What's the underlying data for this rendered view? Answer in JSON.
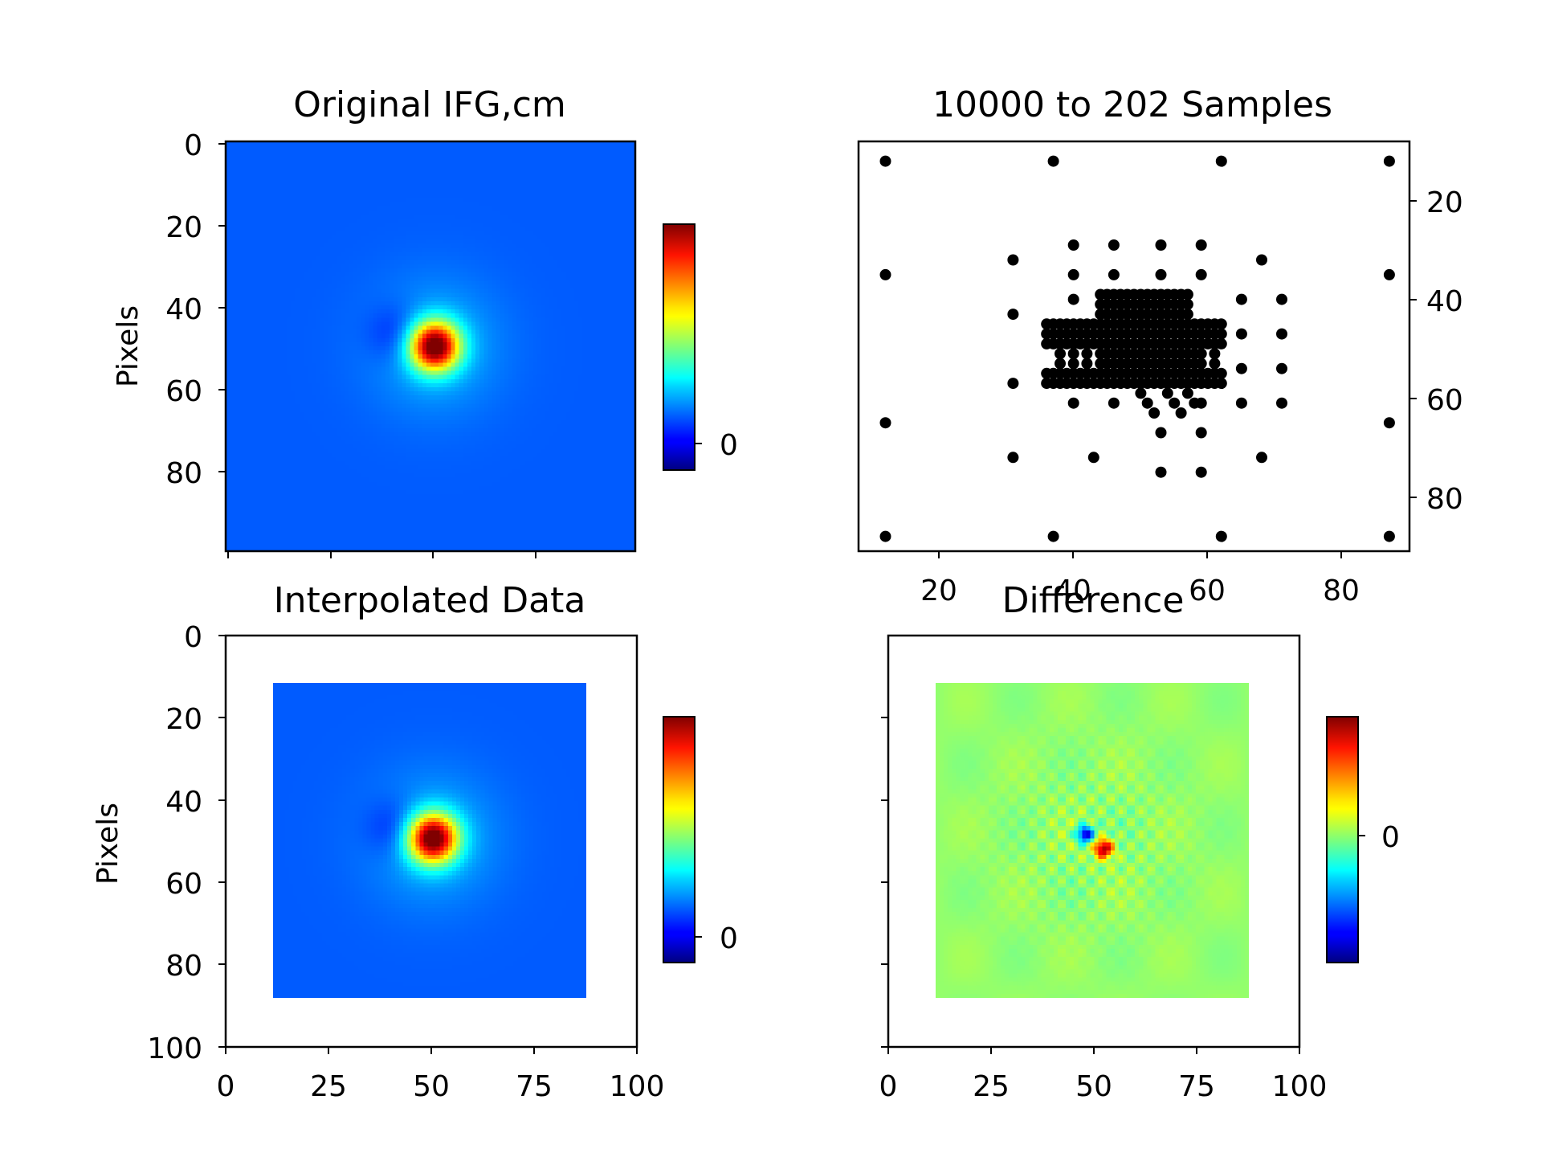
{
  "chart_data": [
    {
      "type": "heatmap",
      "title": "Original IFG,cm",
      "ylabel": "Pixels",
      "xlim": [
        0,
        100
      ],
      "ylim": [
        100,
        0
      ],
      "y_ticks": [
        0,
        20,
        40,
        60,
        80
      ],
      "x_ticks": [
        0,
        25,
        50,
        75,
        100
      ],
      "x_tick_labels_shown": false,
      "colormap": "jet",
      "field": {
        "extent": [
          0,
          100,
          0,
          100
        ],
        "peak": [
          51,
          50
        ],
        "peak_value": 1.0,
        "trough": [
          42,
          47
        ],
        "trough_value": -0.12
      },
      "colorbar": {
        "ticks": [
          0
        ],
        "tick_labels": [
          "0"
        ]
      }
    },
    {
      "type": "scatter",
      "title": "10000 to 202 Samples",
      "xlim": [
        8,
        90
      ],
      "ylim": [
        91,
        8
      ],
      "x_ticks": [
        20,
        40,
        60,
        80
      ],
      "y_ticks": [
        20,
        40,
        60,
        80
      ],
      "y_axis_side": "right",
      "marker_color": "#000000",
      "points": [
        [
          12,
          12
        ],
        [
          37,
          12
        ],
        [
          62,
          12
        ],
        [
          87,
          12
        ],
        [
          12,
          35
        ],
        [
          87,
          35
        ],
        [
          12,
          65
        ],
        [
          87,
          65
        ],
        [
          12,
          88
        ],
        [
          37,
          88
        ],
        [
          62,
          88
        ],
        [
          87,
          88
        ],
        [
          31,
          32
        ],
        [
          31,
          43
        ],
        [
          31,
          57
        ],
        [
          31,
          72
        ],
        [
          68,
          32
        ],
        [
          68,
          72
        ],
        [
          43,
          72
        ],
        [
          53,
          75
        ],
        [
          59,
          75
        ],
        [
          40,
          29
        ],
        [
          46,
          29
        ],
        [
          53,
          29
        ],
        [
          59,
          29
        ],
        [
          40,
          35
        ],
        [
          46,
          35
        ],
        [
          53,
          35
        ],
        [
          59,
          35
        ],
        [
          65,
          40
        ],
        [
          65,
          47
        ],
        [
          65,
          54
        ],
        [
          65,
          61
        ],
        [
          71,
          40
        ],
        [
          71,
          47
        ],
        [
          71,
          54
        ],
        [
          71,
          61
        ],
        [
          53,
          67
        ],
        [
          59,
          67
        ],
        [
          36,
          45
        ],
        [
          37,
          45
        ],
        [
          38,
          45
        ],
        [
          39,
          45
        ],
        [
          40,
          45
        ],
        [
          41,
          45
        ],
        [
          42,
          45
        ],
        [
          43,
          45
        ],
        [
          44,
          45
        ],
        [
          45,
          45
        ],
        [
          46,
          45
        ],
        [
          47,
          45
        ],
        [
          48,
          45
        ],
        [
          49,
          45
        ],
        [
          50,
          45
        ],
        [
          51,
          45
        ],
        [
          52,
          45
        ],
        [
          53,
          45
        ],
        [
          54,
          45
        ],
        [
          55,
          45
        ],
        [
          56,
          45
        ],
        [
          57,
          45
        ],
        [
          58,
          45
        ],
        [
          59,
          45
        ],
        [
          60,
          45
        ],
        [
          61,
          45
        ],
        [
          62,
          45
        ],
        [
          36,
          47
        ],
        [
          37,
          47
        ],
        [
          38,
          47
        ],
        [
          39,
          47
        ],
        [
          40,
          47
        ],
        [
          41,
          47
        ],
        [
          42,
          47
        ],
        [
          43,
          47
        ],
        [
          44,
          47
        ],
        [
          45,
          47
        ],
        [
          46,
          47
        ],
        [
          47,
          47
        ],
        [
          48,
          47
        ],
        [
          49,
          47
        ],
        [
          50,
          47
        ],
        [
          51,
          47
        ],
        [
          52,
          47
        ],
        [
          53,
          47
        ],
        [
          54,
          47
        ],
        [
          55,
          47
        ],
        [
          56,
          47
        ],
        [
          57,
          47
        ],
        [
          58,
          47
        ],
        [
          59,
          47
        ],
        [
          60,
          47
        ],
        [
          61,
          47
        ],
        [
          62,
          47
        ],
        [
          36,
          49
        ],
        [
          37,
          49
        ],
        [
          38,
          49
        ],
        [
          39,
          49
        ],
        [
          40,
          49
        ],
        [
          41,
          49
        ],
        [
          42,
          49
        ],
        [
          43,
          49
        ],
        [
          44,
          49
        ],
        [
          45,
          49
        ],
        [
          46,
          49
        ],
        [
          47,
          49
        ],
        [
          48,
          49
        ],
        [
          49,
          49
        ],
        [
          50,
          49
        ],
        [
          51,
          49
        ],
        [
          52,
          49
        ],
        [
          53,
          49
        ],
        [
          54,
          49
        ],
        [
          55,
          49
        ],
        [
          56,
          49
        ],
        [
          57,
          49
        ],
        [
          58,
          49
        ],
        [
          59,
          49
        ],
        [
          60,
          49
        ],
        [
          61,
          49
        ],
        [
          62,
          49
        ],
        [
          36,
          55
        ],
        [
          37,
          55
        ],
        [
          38,
          55
        ],
        [
          39,
          55
        ],
        [
          40,
          55
        ],
        [
          41,
          55
        ],
        [
          42,
          55
        ],
        [
          43,
          55
        ],
        [
          44,
          55
        ],
        [
          45,
          55
        ],
        [
          46,
          55
        ],
        [
          47,
          55
        ],
        [
          48,
          55
        ],
        [
          49,
          55
        ],
        [
          50,
          55
        ],
        [
          51,
          55
        ],
        [
          52,
          55
        ],
        [
          53,
          55
        ],
        [
          54,
          55
        ],
        [
          55,
          55
        ],
        [
          56,
          55
        ],
        [
          57,
          55
        ],
        [
          58,
          55
        ],
        [
          59,
          55
        ],
        [
          60,
          55
        ],
        [
          61,
          55
        ],
        [
          62,
          55
        ],
        [
          36,
          57
        ],
        [
          37,
          57
        ],
        [
          38,
          57
        ],
        [
          39,
          57
        ],
        [
          40,
          57
        ],
        [
          41,
          57
        ],
        [
          42,
          57
        ],
        [
          43,
          57
        ],
        [
          44,
          57
        ],
        [
          45,
          57
        ],
        [
          46,
          57
        ],
        [
          47,
          57
        ],
        [
          48,
          57
        ],
        [
          49,
          57
        ],
        [
          50,
          57
        ],
        [
          51,
          57
        ],
        [
          52,
          57
        ],
        [
          53,
          57
        ],
        [
          54,
          57
        ],
        [
          55,
          57
        ],
        [
          56,
          57
        ],
        [
          57,
          57
        ],
        [
          58,
          57
        ],
        [
          59,
          57
        ],
        [
          60,
          57
        ],
        [
          61,
          57
        ],
        [
          62,
          57
        ],
        [
          38,
          51
        ],
        [
          40,
          51
        ],
        [
          42,
          51
        ],
        [
          44,
          51
        ],
        [
          45,
          51
        ],
        [
          46,
          51
        ],
        [
          47,
          51
        ],
        [
          48,
          51
        ],
        [
          49,
          51
        ],
        [
          50,
          51
        ],
        [
          51,
          51
        ],
        [
          52,
          51
        ],
        [
          53,
          51
        ],
        [
          54,
          51
        ],
        [
          55,
          51
        ],
        [
          56,
          51
        ],
        [
          57,
          51
        ],
        [
          58,
          51
        ],
        [
          59,
          51
        ],
        [
          61,
          51
        ],
        [
          38,
          53
        ],
        [
          40,
          53
        ],
        [
          42,
          53
        ],
        [
          44,
          53
        ],
        [
          45,
          53
        ],
        [
          46,
          53
        ],
        [
          47,
          53
        ],
        [
          48,
          53
        ],
        [
          49,
          53
        ],
        [
          50,
          53
        ],
        [
          51,
          53
        ],
        [
          52,
          53
        ],
        [
          53,
          53
        ],
        [
          54,
          53
        ],
        [
          55,
          53
        ],
        [
          56,
          53
        ],
        [
          57,
          53
        ],
        [
          58,
          53
        ],
        [
          59,
          53
        ],
        [
          61,
          53
        ],
        [
          44,
          39
        ],
        [
          45,
          39
        ],
        [
          46,
          39
        ],
        [
          47,
          39
        ],
        [
          48,
          39
        ],
        [
          49,
          39
        ],
        [
          50,
          39
        ],
        [
          51,
          39
        ],
        [
          52,
          39
        ],
        [
          53,
          39
        ],
        [
          54,
          39
        ],
        [
          55,
          39
        ],
        [
          56,
          39
        ],
        [
          57,
          39
        ],
        [
          44,
          41
        ],
        [
          45,
          41
        ],
        [
          46,
          41
        ],
        [
          47,
          41
        ],
        [
          48,
          41
        ],
        [
          49,
          41
        ],
        [
          50,
          41
        ],
        [
          51,
          41
        ],
        [
          52,
          41
        ],
        [
          53,
          41
        ],
        [
          54,
          41
        ],
        [
          55,
          41
        ],
        [
          56,
          41
        ],
        [
          57,
          41
        ],
        [
          44,
          43
        ],
        [
          45,
          43
        ],
        [
          46,
          43
        ],
        [
          47,
          43
        ],
        [
          48,
          43
        ],
        [
          49,
          43
        ],
        [
          50,
          43
        ],
        [
          51,
          43
        ],
        [
          52,
          43
        ],
        [
          53,
          43
        ],
        [
          54,
          43
        ],
        [
          55,
          43
        ],
        [
          56,
          43
        ],
        [
          57,
          43
        ],
        [
          40,
          40
        ],
        [
          40,
          61
        ],
        [
          46,
          61
        ],
        [
          50,
          59
        ],
        [
          51,
          61
        ],
        [
          52,
          63
        ],
        [
          54,
          59
        ],
        [
          55,
          61
        ],
        [
          56,
          63
        ],
        [
          57,
          59
        ],
        [
          58,
          61
        ],
        [
          59,
          61
        ]
      ]
    },
    {
      "type": "heatmap",
      "title": "Interpolated Data",
      "ylabel": "Pixels",
      "xlim": [
        0,
        100
      ],
      "ylim": [
        100,
        0
      ],
      "x_ticks": [
        0,
        25,
        50,
        75,
        100
      ],
      "y_ticks": [
        0,
        20,
        40,
        60,
        80,
        100
      ],
      "colormap": "jet",
      "field": {
        "extent": [
          11.5,
          88,
          11.5,
          88.5
        ],
        "peak": [
          50.5,
          49.5
        ],
        "peak_value": 1.0,
        "trough": [
          41.5,
          47
        ],
        "trough_value": -0.12
      },
      "colorbar": {
        "ticks": [
          0
        ],
        "tick_labels": [
          "0"
        ]
      }
    },
    {
      "type": "heatmap",
      "title": "Difference",
      "xlim": [
        0,
        100
      ],
      "ylim": [
        100,
        0
      ],
      "x_ticks": [
        0,
        25,
        50,
        75,
        100
      ],
      "y_ticks": [
        0,
        20,
        40,
        60,
        80,
        100
      ],
      "y_tick_labels_shown": false,
      "colormap": "jet",
      "field": {
        "extent": [
          11.5,
          88,
          11.5,
          88.5
        ],
        "base_value": 0.0,
        "positive_spot": [
          52.5,
          52
        ],
        "positive_value": 0.95,
        "negative_spot": [
          48,
          48.5
        ],
        "negative_value": -0.95
      },
      "colorbar": {
        "ticks": [
          0
        ],
        "tick_labels": [
          "0"
        ]
      }
    }
  ]
}
